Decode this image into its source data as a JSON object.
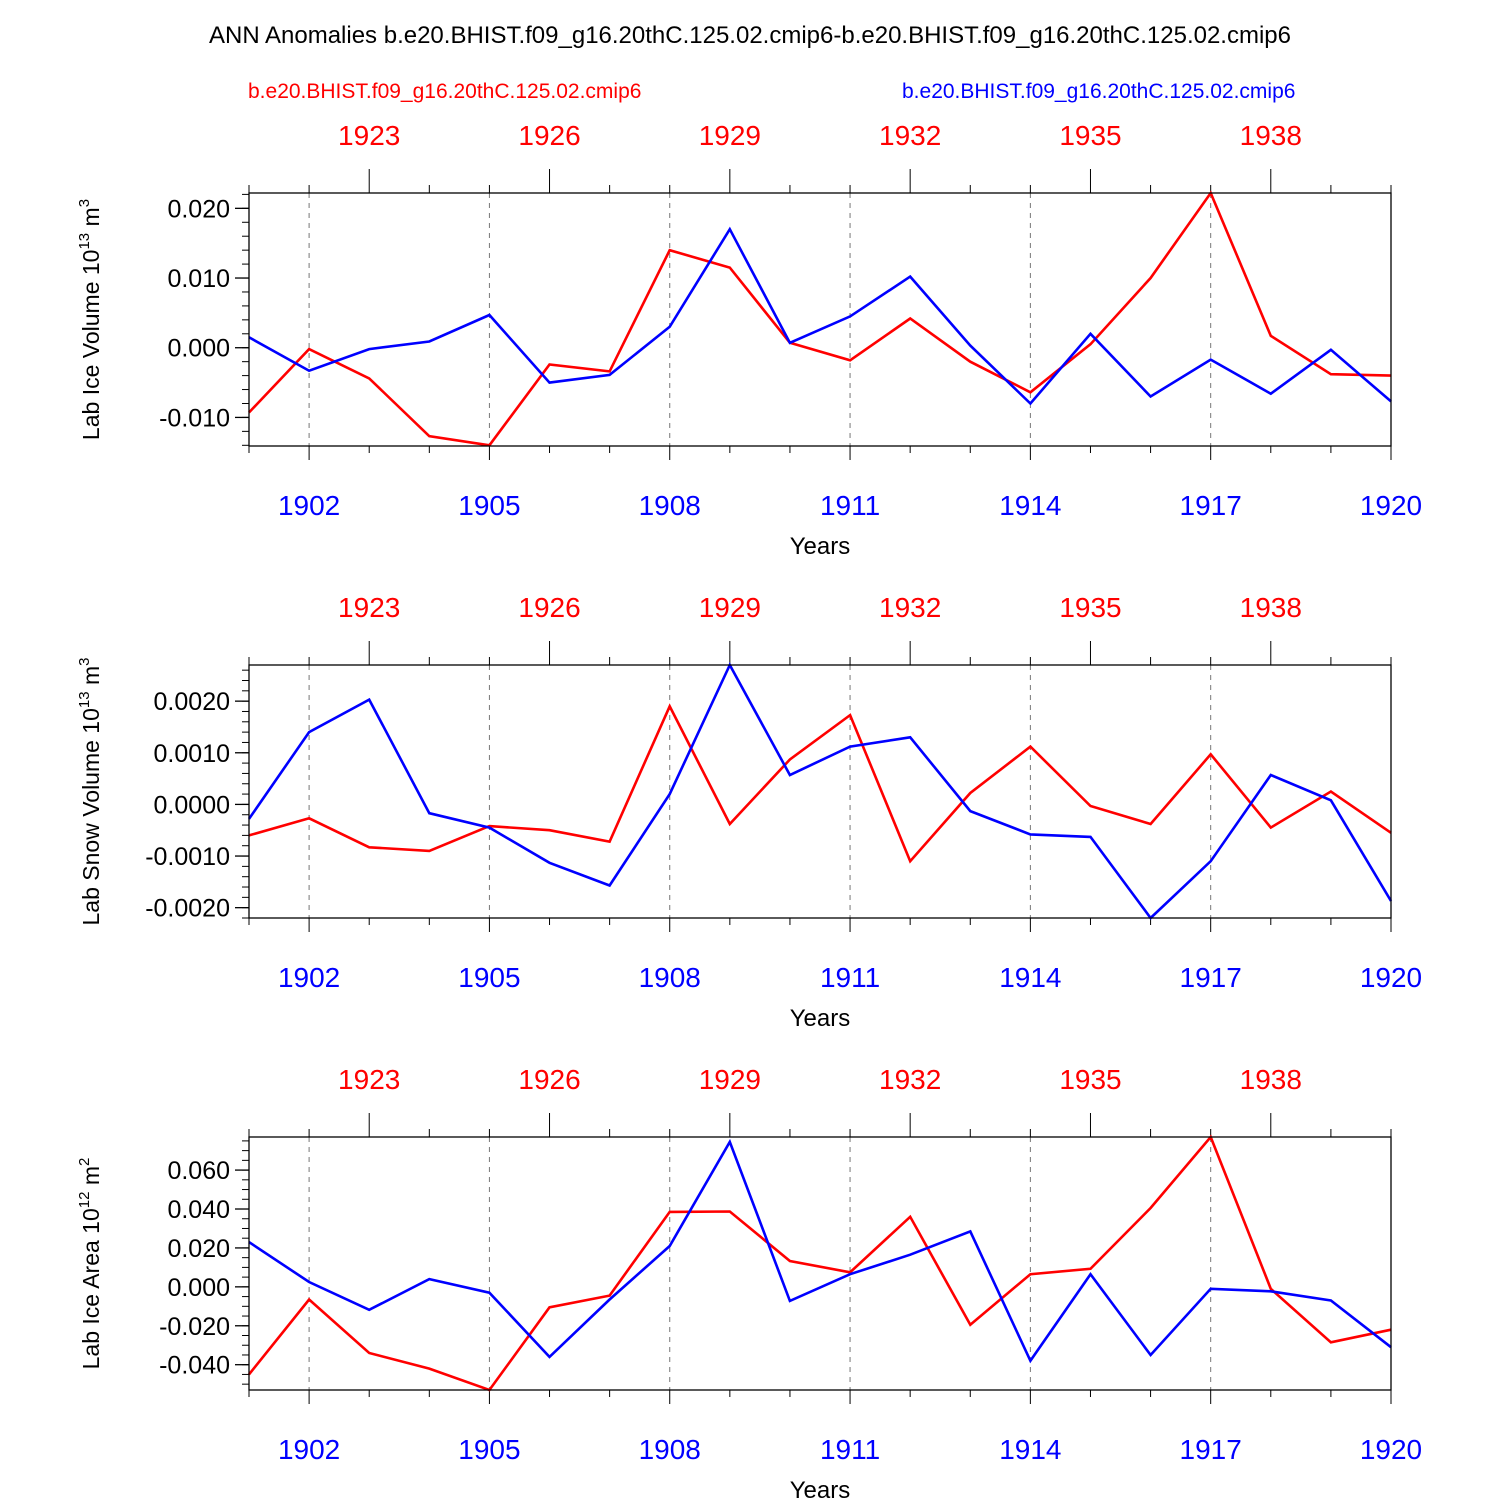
{
  "title": "ANN Anomalies b.e20.BHIST.f09_g16.20thC.125.02.cmip6-b.e20.BHIST.f09_g16.20thC.125.02.cmip6",
  "legend": {
    "series1": "b.e20.BHIST.f09_g16.20thC.125.02.cmip6",
    "series2": "b.e20.BHIST.f09_g16.20thC.125.02.cmip6",
    "series1_color": "#ff0000",
    "series2_color": "#0000ff"
  },
  "chart_data": [
    {
      "type": "line",
      "ylabel_main": "Lab Ice Volume 10",
      "ylabel_exp": "13",
      "ylabel_unit": "m",
      "ylabel_unit_exp": "3",
      "xlabel": "Years",
      "ylim": [
        -0.0141,
        0.0222
      ],
      "yticks": [
        -0.01,
        0.0,
        0.01,
        0.02
      ],
      "ytick_labels": [
        "-0.010",
        "0.000",
        "0.010",
        "0.020"
      ],
      "yminor_step": 0.002,
      "xlim": [
        1901,
        1920
      ],
      "x": [
        1901,
        1902,
        1903,
        1904,
        1905,
        1906,
        1907,
        1908,
        1909,
        1910,
        1911,
        1912,
        1913,
        1914,
        1915,
        1916,
        1917,
        1918,
        1919,
        1920
      ],
      "xticks_bottom": [
        1902,
        1905,
        1908,
        1911,
        1914,
        1917,
        1920
      ],
      "xticks_top_labels": [
        "1923",
        "1926",
        "1929",
        "1932",
        "1935",
        "1938"
      ],
      "series": [
        {
          "name": "b.e20.BHIST.f09_g16.20thC.125.02.cmip6",
          "color": "#ff0000",
          "values": [
            -0.0093,
            -0.0002,
            -0.0044,
            -0.0127,
            -0.014,
            -0.0024,
            -0.0034,
            0.014,
            0.0115,
            0.0007,
            -0.0018,
            0.0042,
            -0.002,
            -0.0064,
            0.0005,
            0.01,
            0.0222,
            0.0017,
            -0.0038,
            -0.004
          ]
        },
        {
          "name": "b.e20.BHIST.f09_g16.20thC.125.02.cmip6",
          "color": "#0000ff",
          "values": [
            0.0015,
            -0.0033,
            -0.0002,
            0.0009,
            0.0047,
            -0.005,
            -0.0039,
            0.003,
            0.017,
            0.0007,
            0.0045,
            0.0102,
            0.0003,
            -0.008,
            0.002,
            -0.007,
            -0.0017,
            -0.0066,
            -0.0003,
            -0.0077
          ]
        }
      ]
    },
    {
      "type": "line",
      "ylabel_main": "Lab Snow Volume 10",
      "ylabel_exp": "13",
      "ylabel_unit": "m",
      "ylabel_unit_exp": "3",
      "xlabel": "Years",
      "ylim": [
        -0.0022,
        0.0027
      ],
      "yticks": [
        -0.002,
        -0.001,
        0.0,
        0.001,
        0.002
      ],
      "ytick_labels": [
        "-0.0020",
        "-0.0010",
        "0.0000",
        "0.0010",
        "0.0020"
      ],
      "yminor_step": 0.0002,
      "xlim": [
        1901,
        1920
      ],
      "x": [
        1901,
        1902,
        1903,
        1904,
        1905,
        1906,
        1907,
        1908,
        1909,
        1910,
        1911,
        1912,
        1913,
        1914,
        1915,
        1916,
        1917,
        1918,
        1919,
        1920
      ],
      "xticks_bottom": [
        1902,
        1905,
        1908,
        1911,
        1914,
        1917,
        1920
      ],
      "xticks_top_labels": [
        "1923",
        "1926",
        "1929",
        "1932",
        "1935",
        "1938"
      ],
      "series": [
        {
          "name": "b.e20.BHIST.f09_g16.20thC.125.02.cmip6",
          "color": "#ff0000",
          "values": [
            -0.0006,
            -0.00027,
            -0.00083,
            -0.0009,
            -0.00042,
            -0.0005,
            -0.00072,
            0.0019,
            -0.00038,
            0.00087,
            0.00173,
            -0.0011,
            0.00022,
            0.00112,
            -3e-05,
            -0.00038,
            0.00097,
            -0.00045,
            0.00025,
            -0.00055
          ]
        },
        {
          "name": "b.e20.BHIST.f09_g16.20thC.125.02.cmip6",
          "color": "#0000ff",
          "values": [
            -0.00028,
            0.0014,
            0.00203,
            -0.00017,
            -0.00045,
            -0.00113,
            -0.00157,
            0.0002,
            0.0027,
            0.00057,
            0.00112,
            0.0013,
            -0.00013,
            -0.00058,
            -0.00063,
            -0.0022,
            -0.0011,
            0.00057,
            8e-05,
            -0.00187
          ]
        }
      ]
    },
    {
      "type": "line",
      "ylabel_main": "Lab Ice Area 10",
      "ylabel_exp": "12",
      "ylabel_unit": "m",
      "ylabel_unit_exp": "2",
      "xlabel": "Years",
      "ylim": [
        -0.053,
        0.077
      ],
      "yticks": [
        -0.04,
        -0.02,
        0.0,
        0.02,
        0.04,
        0.06
      ],
      "ytick_labels": [
        "-0.040",
        "-0.020",
        "0.000",
        "0.020",
        "0.040",
        "0.060"
      ],
      "yminor_step": 0.005,
      "xlim": [
        1901,
        1920
      ],
      "x": [
        1901,
        1902,
        1903,
        1904,
        1905,
        1906,
        1907,
        1908,
        1909,
        1910,
        1911,
        1912,
        1913,
        1914,
        1915,
        1916,
        1917,
        1918,
        1919,
        1920
      ],
      "xticks_bottom": [
        1902,
        1905,
        1908,
        1911,
        1914,
        1917,
        1920
      ],
      "xticks_top_labels": [
        "1923",
        "1926",
        "1929",
        "1932",
        "1935",
        "1938"
      ],
      "series": [
        {
          "name": "b.e20.BHIST.f09_g16.20thC.125.02.cmip6",
          "color": "#ff0000",
          "values": [
            -0.045,
            -0.0065,
            -0.034,
            -0.042,
            -0.053,
            -0.0105,
            -0.0045,
            0.0385,
            0.0387,
            0.0133,
            0.0075,
            0.036,
            -0.0195,
            0.0065,
            0.0093,
            0.0405,
            0.077,
            -0.001,
            -0.0285,
            -0.022
          ]
        },
        {
          "name": "b.e20.BHIST.f09_g16.20thC.125.02.cmip6",
          "color": "#0000ff",
          "values": [
            0.023,
            0.0025,
            -0.0118,
            0.004,
            -0.003,
            -0.036,
            -0.0065,
            0.021,
            0.0745,
            -0.0072,
            0.0065,
            0.0165,
            0.0285,
            -0.038,
            0.0065,
            -0.035,
            -0.001,
            -0.0023,
            -0.007,
            -0.031
          ]
        }
      ]
    }
  ]
}
